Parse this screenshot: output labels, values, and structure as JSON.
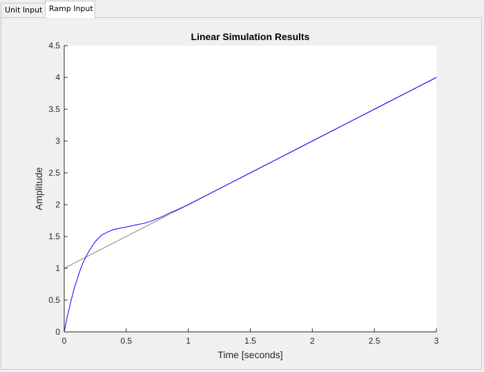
{
  "tabs": [
    {
      "label": "Unit Input",
      "active": false
    },
    {
      "label": "Ramp Input",
      "active": true
    }
  ],
  "chart_data": {
    "type": "line",
    "title": "Linear Simulation Results",
    "xlabel": "Time [seconds]",
    "ylabel": "Amplitude",
    "xlim": [
      0,
      3
    ],
    "ylim": [
      0,
      4.5
    ],
    "xticks": [
      0,
      0.5,
      1,
      1.5,
      2,
      2.5,
      3
    ],
    "xtick_labels": [
      "0",
      "0.5",
      "1",
      "1.5",
      "2",
      "2.5",
      "3"
    ],
    "yticks": [
      0,
      0.5,
      1,
      1.5,
      2,
      2.5,
      3,
      3.5,
      4,
      4.5
    ],
    "ytick_labels": [
      "0",
      "0.5",
      "1",
      "1.5",
      "2",
      "2.5",
      "3",
      "3.5",
      "4",
      "4.5"
    ],
    "grid": false,
    "series": [
      {
        "color": "#808080",
        "x": [
          0,
          3
        ],
        "y": [
          1,
          4
        ]
      },
      {
        "color": "#0000ff",
        "x": [
          0,
          0.02,
          0.05,
          0.08,
          0.1,
          0.13,
          0.15,
          0.18,
          0.2,
          0.23,
          0.25,
          0.28,
          0.3,
          0.35,
          0.4,
          0.45,
          0.5,
          0.55,
          0.6,
          0.65,
          0.7,
          0.75,
          0.8,
          0.85,
          0.9,
          1.0,
          1.2,
          1.5,
          2.0,
          2.5,
          3.0
        ],
        "y": [
          0,
          0.2,
          0.45,
          0.68,
          0.8,
          0.98,
          1.08,
          1.2,
          1.27,
          1.36,
          1.42,
          1.48,
          1.52,
          1.57,
          1.61,
          1.63,
          1.65,
          1.67,
          1.69,
          1.71,
          1.74,
          1.78,
          1.82,
          1.87,
          1.91,
          2.0,
          2.2,
          2.5,
          3.0,
          3.5,
          4.0
        ]
      }
    ]
  }
}
